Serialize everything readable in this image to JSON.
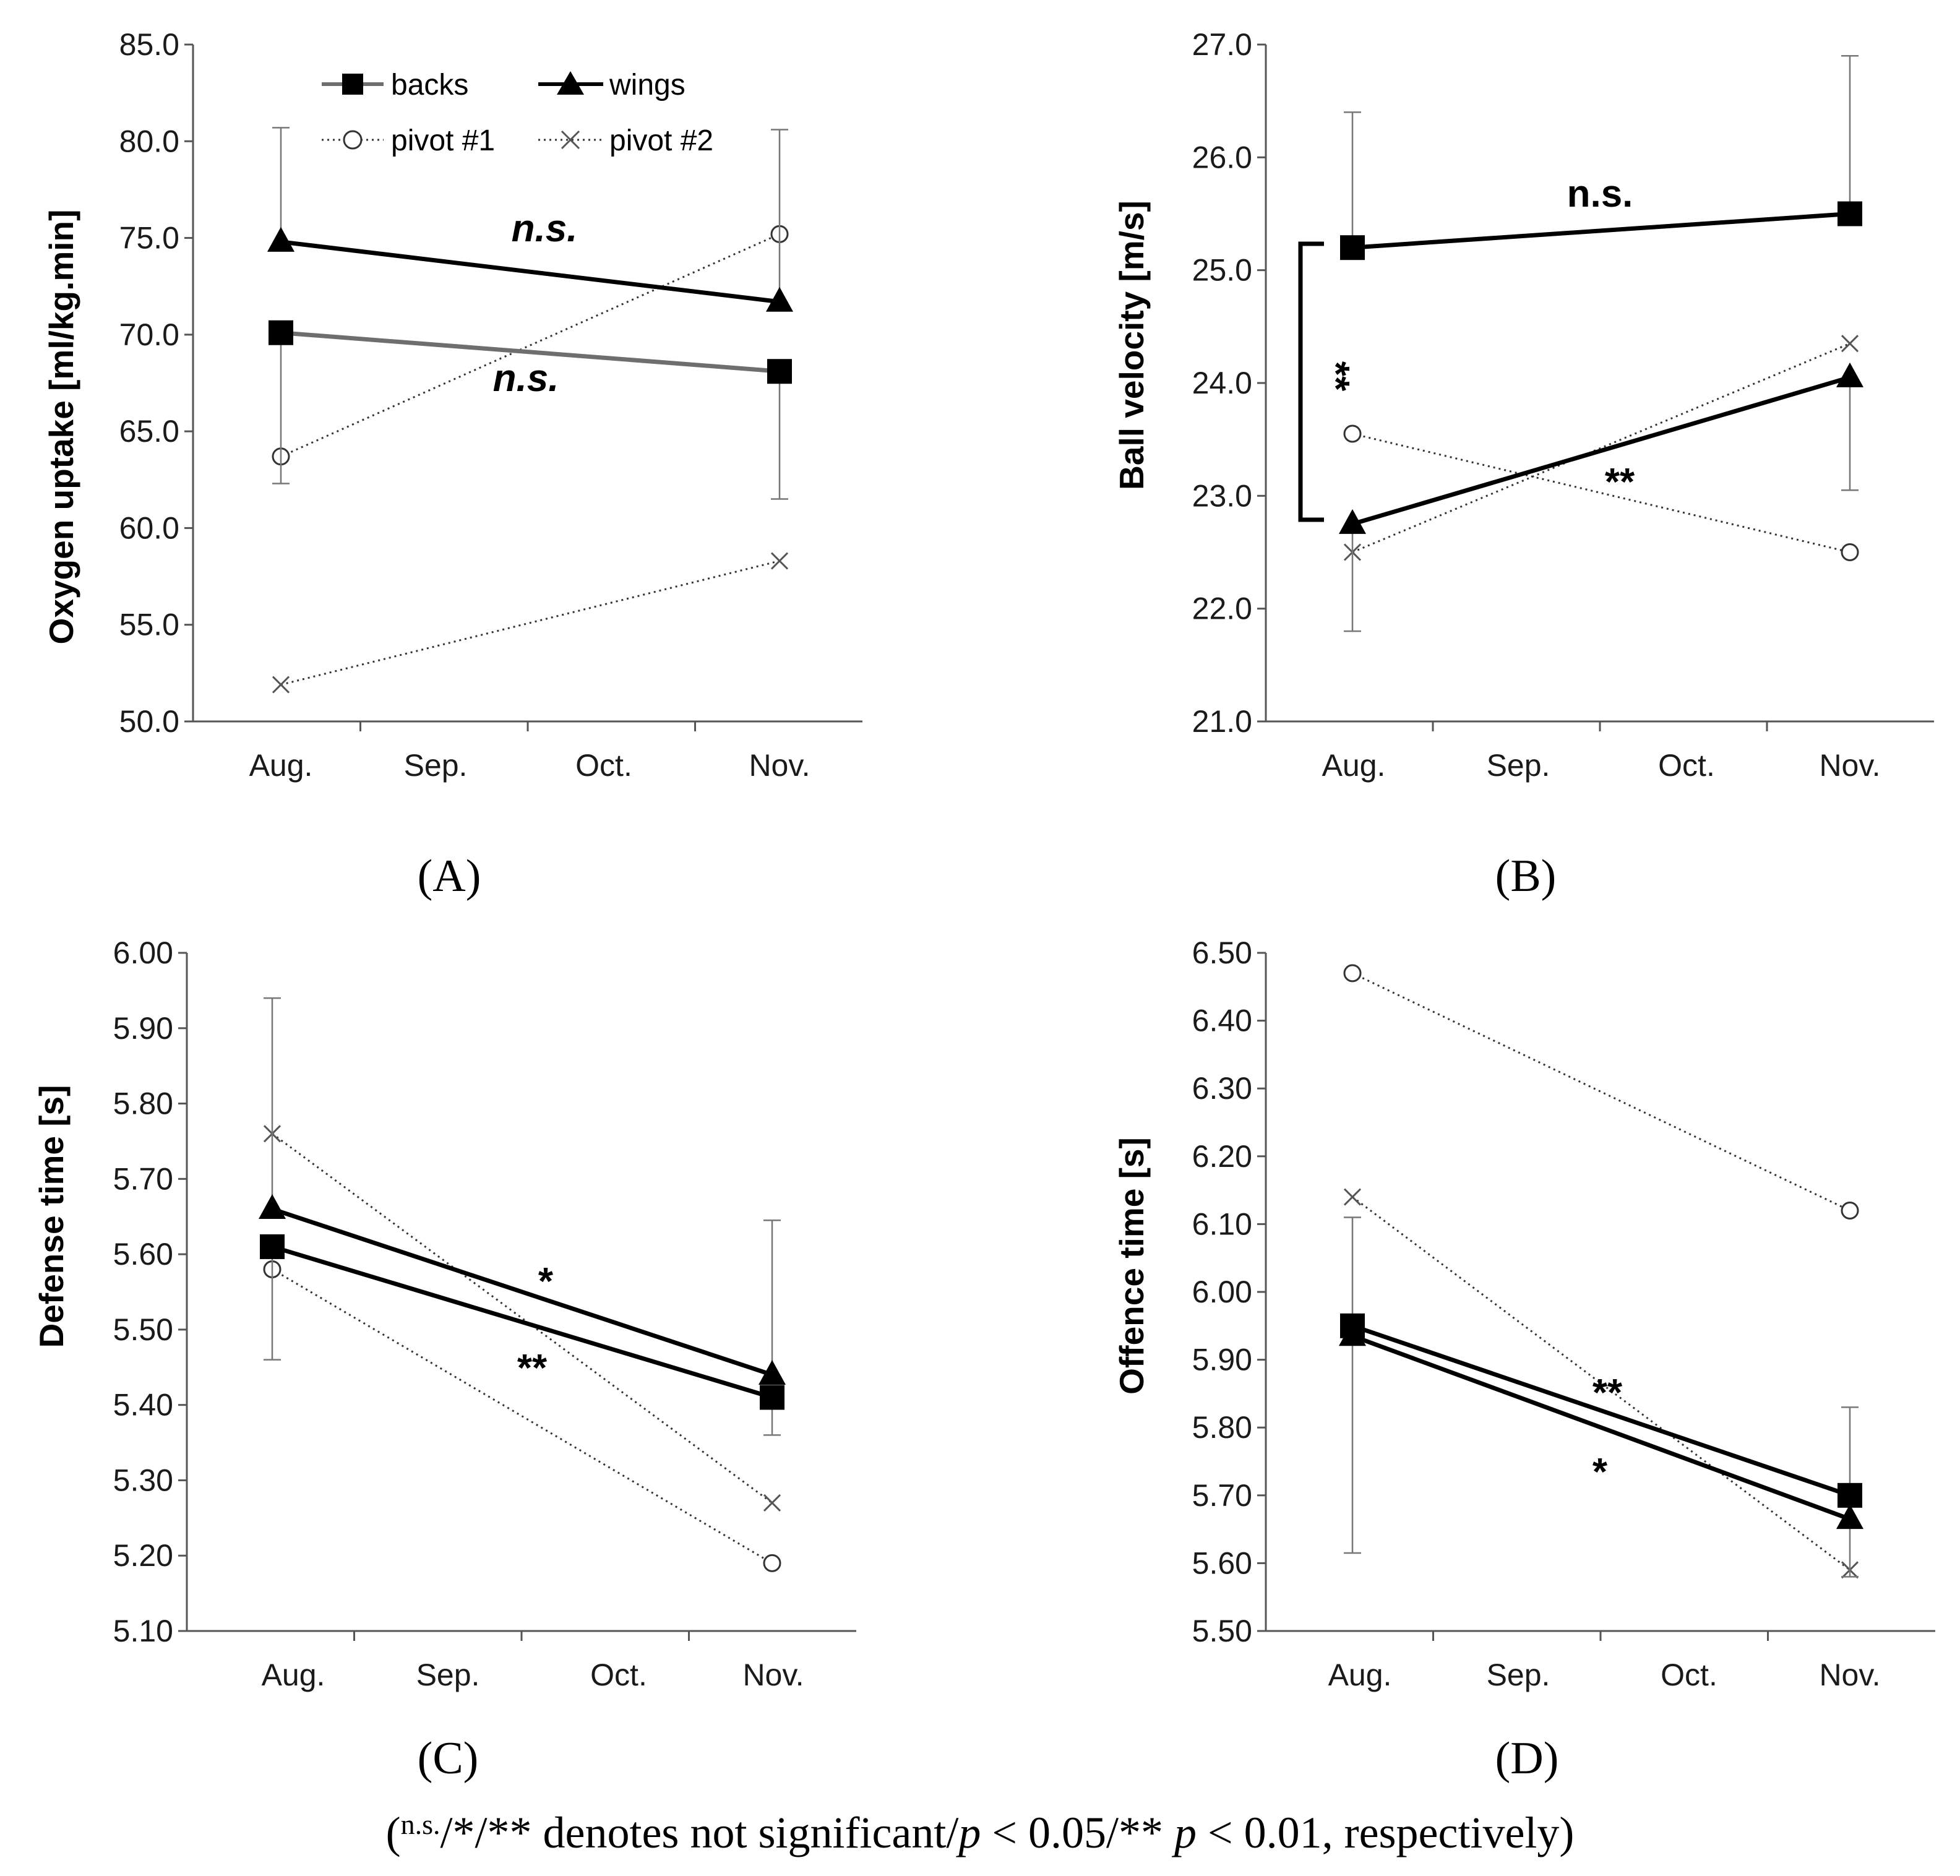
{
  "legend": {
    "backs": "backs",
    "wings": "wings",
    "pivot1": "pivot #1",
    "pivot2": "pivot #2"
  },
  "caption": {
    "open": "(",
    "ns": "n.s.",
    "stars": "/*/**",
    "mid": " denotes not significant/",
    "p1": "p",
    "lt1": " < 0.05/** ",
    "p2": "p",
    "lt2": " < 0.01, respectively)"
  },
  "chart_data": [
    {
      "panel": "A",
      "panel_label": "(A)",
      "type": "line",
      "ylabel": "Oxygen uptake [ml/kg.min]",
      "categories": [
        "Aug.",
        "Sep.",
        "Oct.",
        "Nov."
      ],
      "ylim": [
        50.0,
        85.0
      ],
      "yticks": [
        "50.0",
        "55.0",
        "60.0",
        "65.0",
        "70.0",
        "75.0",
        "80.0",
        "85.0"
      ],
      "series": [
        {
          "name": "backs",
          "style": "gray-solid-square",
          "x": [
            "Aug.",
            "Nov."
          ],
          "values": [
            70.1,
            68.1
          ],
          "err_lower": [
            62.3,
            61.5
          ]
        },
        {
          "name": "wings",
          "style": "black-solid-triangle",
          "x": [
            "Aug.",
            "Nov."
          ],
          "values": [
            74.8,
            71.7
          ],
          "err_upper": [
            80.7,
            80.6
          ]
        },
        {
          "name": "pivot #1",
          "style": "dotted-circle",
          "x": [
            "Aug.",
            "Nov."
          ],
          "values": [
            63.7,
            75.2
          ]
        },
        {
          "name": "pivot #2",
          "style": "dotted-cross",
          "x": [
            "Aug.",
            "Nov."
          ],
          "values": [
            51.9,
            58.3
          ]
        }
      ],
      "annotations": [
        {
          "text": "n.s.",
          "series": "wings"
        },
        {
          "text": "n.s.",
          "series": "backs"
        }
      ]
    },
    {
      "panel": "B",
      "panel_label": "(B)",
      "type": "line",
      "ylabel": "Ball velocity [m/s]",
      "categories": [
        "Aug.",
        "Sep.",
        "Oct.",
        "Nov."
      ],
      "ylim": [
        21.0,
        27.0
      ],
      "yticks": [
        "21.0",
        "22.0",
        "23.0",
        "24.0",
        "25.0",
        "26.0",
        "27.0"
      ],
      "series": [
        {
          "name": "backs",
          "style": "black-solid-square",
          "x": [
            "Aug.",
            "Nov."
          ],
          "values": [
            25.2,
            25.5
          ],
          "err_upper": [
            26.4,
            26.9
          ]
        },
        {
          "name": "wings",
          "style": "black-solid-triangle",
          "x": [
            "Aug.",
            "Nov."
          ],
          "values": [
            22.75,
            24.05
          ],
          "err_lower": [
            21.8,
            23.05
          ]
        },
        {
          "name": "pivot #1",
          "style": "dotted-circle",
          "x": [
            "Aug.",
            "Nov."
          ],
          "values": [
            23.55,
            22.5
          ]
        },
        {
          "name": "pivot #2",
          "style": "dotted-cross",
          "x": [
            "Aug.",
            "Nov."
          ],
          "values": [
            22.5,
            24.35
          ]
        }
      ],
      "annotations": [
        {
          "text": "n.s.",
          "series": "backs"
        },
        {
          "text": "**",
          "series": "wings"
        },
        {
          "text": "**",
          "bracket": "backs vs wings in Aug."
        }
      ]
    },
    {
      "panel": "C",
      "panel_label": "(C)",
      "type": "line",
      "ylabel": "Defense time [s]",
      "categories": [
        "Aug.",
        "Sep.",
        "Oct.",
        "Nov."
      ],
      "ylim": [
        5.1,
        6.0
      ],
      "yticks": [
        "5.10",
        "5.20",
        "5.30",
        "5.40",
        "5.50",
        "5.60",
        "5.70",
        "5.80",
        "5.90",
        "6.00"
      ],
      "series": [
        {
          "name": "backs",
          "style": "black-solid-square",
          "x": [
            "Aug.",
            "Nov."
          ],
          "values": [
            5.61,
            5.41
          ],
          "err_lower": [
            5.46,
            5.36
          ]
        },
        {
          "name": "wings",
          "style": "black-solid-triangle",
          "x": [
            "Aug.",
            "Nov."
          ],
          "values": [
            5.66,
            5.44
          ],
          "err_upper": [
            5.94,
            5.645
          ]
        },
        {
          "name": "pivot #1",
          "style": "dotted-circle",
          "x": [
            "Aug.",
            "Nov."
          ],
          "values": [
            5.58,
            5.19
          ]
        },
        {
          "name": "pivot #2",
          "style": "dotted-cross",
          "x": [
            "Aug.",
            "Nov."
          ],
          "values": [
            5.76,
            5.27
          ]
        }
      ],
      "annotations": [
        {
          "text": "*",
          "series": "wings"
        },
        {
          "text": "**",
          "series": "backs"
        }
      ]
    },
    {
      "panel": "D",
      "panel_label": "(D)",
      "type": "line",
      "ylabel": "Offence time [s]",
      "categories": [
        "Aug.",
        "Sep.",
        "Oct.",
        "Nov."
      ],
      "ylim": [
        5.5,
        6.5
      ],
      "yticks": [
        "5.50",
        "5.60",
        "5.70",
        "5.80",
        "5.90",
        "6.00",
        "6.10",
        "6.20",
        "6.30",
        "6.40",
        "6.50"
      ],
      "series": [
        {
          "name": "backs",
          "style": "black-solid-square",
          "x": [
            "Aug.",
            "Nov."
          ],
          "values": [
            5.95,
            5.7
          ],
          "err_upper": [
            6.11,
            5.83
          ]
        },
        {
          "name": "wings",
          "style": "black-solid-triangle",
          "x": [
            "Aug.",
            "Nov."
          ],
          "values": [
            5.935,
            5.665
          ],
          "err_lower": [
            5.615,
            5.58
          ]
        },
        {
          "name": "pivot #1",
          "style": "dotted-circle",
          "x": [
            "Aug.",
            "Nov."
          ],
          "values": [
            6.47,
            6.12
          ]
        },
        {
          "name": "pivot #2",
          "style": "dotted-cross",
          "x": [
            "Aug.",
            "Nov."
          ],
          "values": [
            6.14,
            5.59
          ]
        }
      ],
      "annotations": [
        {
          "text": "**",
          "series": "pivot #2"
        },
        {
          "text": "*",
          "series": "wings"
        }
      ]
    }
  ]
}
